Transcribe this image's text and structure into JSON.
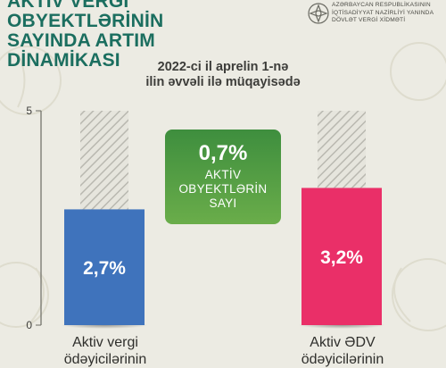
{
  "header": {
    "title_line1": "AKTİV VERGİ OBYEKTLƏRİNİN",
    "title_line2": "SAYINDA ARTIM DİNAMİKASI"
  },
  "org": {
    "line1": "AZƏRBAYCAN RESPUBLİKASININ",
    "line2": "İQTİSADİYYAT NAZİRLİYİ YANINDA",
    "line3": "DÖVLƏT VERGİ XİDMƏTİ"
  },
  "subtitle": {
    "line1": "2022-ci il aprelin 1-nə",
    "line2": "ilin əvvəli ilə müqayisədə"
  },
  "center_card": {
    "value": "0,7%",
    "label_line1": "AKTİV",
    "label_line2": "OBYEKTLƏRİN",
    "label_line3": "SAYI"
  },
  "colors": {
    "bar_blue": "#3f73bc",
    "bar_pink": "#ea2f68",
    "card_green": "#4c9a42",
    "title_green": "#1b6e5f"
  },
  "chart_data": {
    "type": "bar",
    "categories": [
      "Aktiv vergi",
      "Aktiv ƏDV"
    ],
    "values": [
      2.7,
      3.2
    ],
    "value_labels": [
      "2,7%",
      "3,2%"
    ],
    "ylim": [
      0,
      5
    ],
    "y_ticks": [
      "0",
      "5"
    ],
    "category_sublabels": [
      "ödəyicilərinin",
      "ödəyicilərinin"
    ],
    "grid": false
  }
}
